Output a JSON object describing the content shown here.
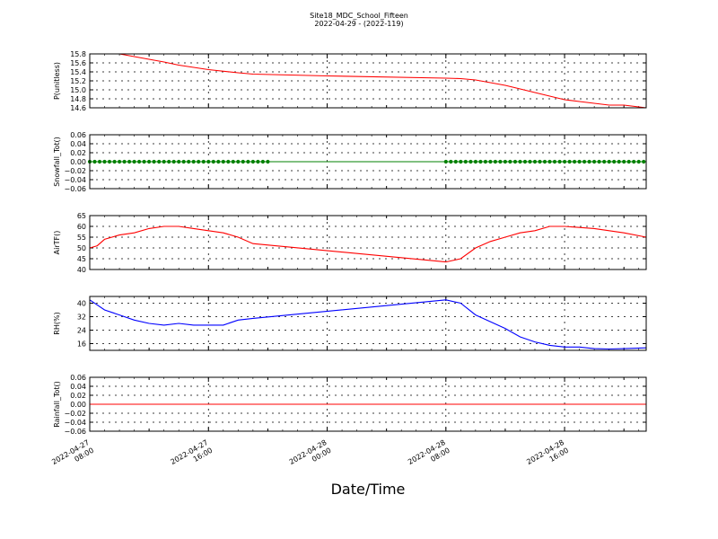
{
  "figure": {
    "title": "Site18_MDC_School_Fifteen",
    "subtitle": "2022-04-29 - (2022-119)",
    "xlabel": "Date/Time",
    "x_ticks": [
      "2022-04-27\n08:00",
      "2022-04-27\n16:00",
      "2022-04-28\n00:00",
      "2022-04-28\n08:00",
      "2022-04-28\n16:00"
    ]
  },
  "chart_data": [
    {
      "type": "line",
      "ylabel": "P(unitless)",
      "ylim": [
        14.6,
        15.8
      ],
      "yticks": [
        "15.8",
        "15.6",
        "15.4",
        "15.2",
        "15.0",
        "14.8",
        "14.6"
      ],
      "grid": true,
      "series": [
        {
          "color": "#ff0000",
          "x": [
            "2022-04-27 08:00",
            "2022-04-27 10:00",
            "2022-04-27 11:00",
            "2022-04-27 12:00",
            "2022-04-27 13:00",
            "2022-04-27 14:00",
            "2022-04-27 16:00",
            "2022-04-27 18:00",
            "2022-04-27 19:00",
            "2022-04-28 00:00",
            "2022-04-28 08:00",
            "2022-04-28 09:00",
            "2022-04-28 10:00",
            "2022-04-28 11:00",
            "2022-04-28 12:00",
            "2022-04-28 13:00",
            "2022-04-28 14:00",
            "2022-04-28 15:00",
            "2022-04-28 16:00",
            "2022-04-28 17:00",
            "2022-04-28 18:00",
            "2022-04-28 19:00",
            "2022-04-28 20:00",
            "2022-04-28 21:30"
          ],
          "y": [
            15.8,
            15.8,
            15.74,
            15.68,
            15.62,
            15.55,
            15.45,
            15.38,
            15.35,
            15.31,
            15.26,
            15.25,
            15.22,
            15.16,
            15.1,
            15.02,
            14.94,
            14.86,
            14.78,
            14.74,
            14.7,
            14.66,
            14.66,
            14.6
          ]
        }
      ]
    },
    {
      "type": "line",
      "ylabel": "Snowfall_Tot()",
      "ylim": [
        -0.06,
        0.06
      ],
      "yticks": [
        "0.06",
        "0.04",
        "0.02",
        "0.00",
        "−0.02",
        "−0.04",
        "−0.06"
      ],
      "grid": true,
      "markers": true,
      "marker_ranges": [
        [
          "2022-04-27 08:00",
          "2022-04-27 20:00"
        ],
        [
          "2022-04-28 08:00",
          "2022-04-28 21:30"
        ]
      ],
      "series": [
        {
          "color": "#008000",
          "x": [
            "2022-04-27 08:00",
            "2022-04-28 21:30"
          ],
          "y": [
            0,
            0
          ]
        }
      ]
    },
    {
      "type": "line",
      "ylabel": "AirTF()",
      "ylim": [
        40,
        65
      ],
      "yticks": [
        "65",
        "60",
        "55",
        "50",
        "45",
        "40"
      ],
      "grid": true,
      "series": [
        {
          "color": "#ff0000",
          "x": [
            "2022-04-27 08:00",
            "2022-04-27 08:30",
            "2022-04-27 09:00",
            "2022-04-27 10:00",
            "2022-04-27 11:00",
            "2022-04-27 12:00",
            "2022-04-27 13:00",
            "2022-04-27 14:00",
            "2022-04-27 15:00",
            "2022-04-27 16:00",
            "2022-04-27 17:00",
            "2022-04-27 18:00",
            "2022-04-27 19:00",
            "2022-04-28 08:00",
            "2022-04-28 09:00",
            "2022-04-28 10:00",
            "2022-04-28 11:00",
            "2022-04-28 12:00",
            "2022-04-28 13:00",
            "2022-04-28 14:00",
            "2022-04-28 15:00",
            "2022-04-28 16:00",
            "2022-04-28 17:00",
            "2022-04-28 18:00",
            "2022-04-28 19:00",
            "2022-04-28 20:00",
            "2022-04-28 21:30"
          ],
          "y": [
            50,
            51,
            54,
            56,
            57,
            59,
            60,
            60,
            59,
            58,
            57,
            55,
            52,
            43.5,
            45,
            50,
            53,
            55,
            57,
            58,
            60,
            60,
            59.5,
            59,
            58,
            57,
            55
          ]
        }
      ]
    },
    {
      "type": "line",
      "ylabel": "RH(%)",
      "ylim": [
        12,
        44
      ],
      "yticks": [
        "40",
        "32",
        "24",
        "16"
      ],
      "grid": true,
      "series": [
        {
          "color": "#0000ff",
          "x": [
            "2022-04-27 08:00",
            "2022-04-27 09:00",
            "2022-04-27 10:00",
            "2022-04-27 11:00",
            "2022-04-27 12:00",
            "2022-04-27 13:00",
            "2022-04-27 14:00",
            "2022-04-27 15:00",
            "2022-04-27 16:00",
            "2022-04-27 17:00",
            "2022-04-27 18:00",
            "2022-04-27 19:00",
            "2022-04-28 08:00",
            "2022-04-28 09:00",
            "2022-04-28 10:00",
            "2022-04-28 11:00",
            "2022-04-28 12:00",
            "2022-04-28 13:00",
            "2022-04-28 14:00",
            "2022-04-28 15:00",
            "2022-04-28 16:00",
            "2022-04-28 17:00",
            "2022-04-28 18:00",
            "2022-04-28 19:00",
            "2022-04-28 20:00",
            "2022-04-28 21:30"
          ],
          "y": [
            42,
            36,
            33,
            30,
            28,
            27,
            28,
            27,
            27,
            27,
            30,
            31,
            42,
            40,
            33,
            29,
            25,
            20,
            17,
            15,
            14,
            14,
            13,
            12.8,
            13,
            13.5
          ]
        }
      ]
    },
    {
      "type": "line",
      "ylabel": "Rainfall_Tot()",
      "ylim": [
        -0.06,
        0.06
      ],
      "yticks": [
        "0.06",
        "0.04",
        "0.02",
        "0.00",
        "−0.02",
        "−0.04",
        "−0.06"
      ],
      "grid": true,
      "series": [
        {
          "color": "#ff0000",
          "x": [
            "2022-04-27 08:00",
            "2022-04-28 21:30"
          ],
          "y": [
            0,
            0
          ]
        }
      ]
    }
  ]
}
